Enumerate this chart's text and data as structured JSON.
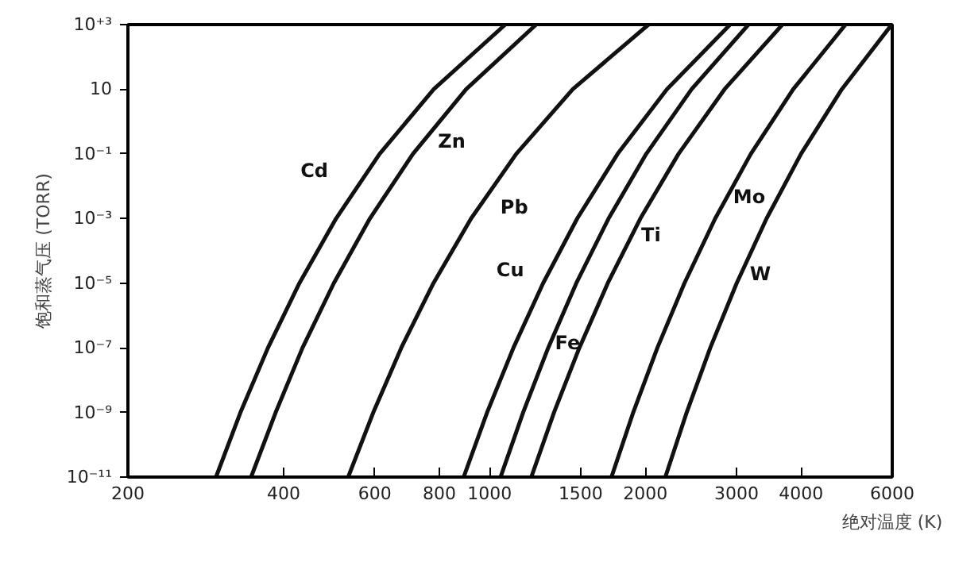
{
  "chart_data": {
    "type": "line",
    "xlabel": "绝对温度 (K)",
    "ylabel": "饱和蒸气压 (TORR)",
    "log": "xy",
    "xlim": [
      200,
      6000
    ],
    "xticks": [
      200,
      400,
      600,
      800,
      1000,
      1500,
      2000,
      3000,
      4000,
      6000
    ],
    "ylim": [
      1e-11,
      1000
    ],
    "yticks": [
      {
        "value": 1e-11,
        "label": "10⁻¹¹"
      },
      {
        "value": 1e-09,
        "label": "10⁻⁹"
      },
      {
        "value": 1e-07,
        "label": "10⁻⁷"
      },
      {
        "value": 1e-05,
        "label": "10⁻⁵"
      },
      {
        "value": 0.001,
        "label": "10⁻³"
      },
      {
        "value": 0.1,
        "label": "10⁻¹"
      },
      {
        "value": 10,
        "label": "10"
      },
      {
        "value": 1000,
        "label": "10⁺³"
      }
    ],
    "series": [
      {
        "name": "Cd",
        "color": "#111111",
        "x": [
          296,
          330,
          373,
          429,
          505,
          613,
          780,
          1072
        ],
        "values": [
          1e-11,
          1e-09,
          1e-07,
          1e-05,
          0.001,
          0.1,
          10,
          1000
        ]
      },
      {
        "name": "Zn",
        "color": "#111111",
        "x": [
          346,
          386,
          435,
          500,
          587,
          711,
          901,
          1230
        ],
        "values": [
          1e-11,
          1e-09,
          1e-07,
          1e-05,
          0.001,
          0.1,
          10,
          1000
        ]
      },
      {
        "name": "Pb",
        "color": "#111111",
        "x": [
          533,
          596,
          675,
          779,
          921,
          1126,
          1448,
          2028
        ],
        "values": [
          1e-11,
          1e-09,
          1e-07,
          1e-05,
          0.001,
          0.1,
          10,
          1000
        ]
      },
      {
        "name": "Cu",
        "color": "#111111",
        "x": [
          891,
          989,
          1112,
          1269,
          1477,
          1768,
          2201,
          2916
        ],
        "values": [
          1e-11,
          1e-09,
          1e-07,
          1e-05,
          0.001,
          0.1,
          10,
          1000
        ]
      },
      {
        "name": "Fe",
        "color": "#111111",
        "x": [
          1050,
          1161,
          1298,
          1471,
          1698,
          2008,
          2457,
          3164
        ],
        "values": [
          1e-11,
          1e-09,
          1e-07,
          1e-05,
          0.001,
          0.1,
          10,
          1000
        ]
      },
      {
        "name": "Ti",
        "color": "#111111",
        "x": [
          1204,
          1332,
          1491,
          1692,
          1956,
          2318,
          2845,
          3680
        ],
        "values": [
          1e-11,
          1e-09,
          1e-07,
          1e-05,
          0.001,
          0.1,
          10,
          1000
        ]
      },
      {
        "name": "Mo",
        "color": "#111111",
        "x": [
          1720,
          1895,
          2110,
          2380,
          2729,
          3198,
          3862,
          4874
        ],
        "values": [
          1e-11,
          1e-09,
          1e-07,
          1e-05,
          0.001,
          0.1,
          10,
          1000
        ]
      },
      {
        "name": "W",
        "color": "#111111",
        "x": [
          2186,
          2404,
          2670,
          3003,
          3430,
          3998,
          4794,
          5985
        ],
        "values": [
          1e-11,
          1e-09,
          1e-07,
          1e-05,
          0.001,
          0.1,
          10,
          1000
        ]
      }
    ]
  }
}
